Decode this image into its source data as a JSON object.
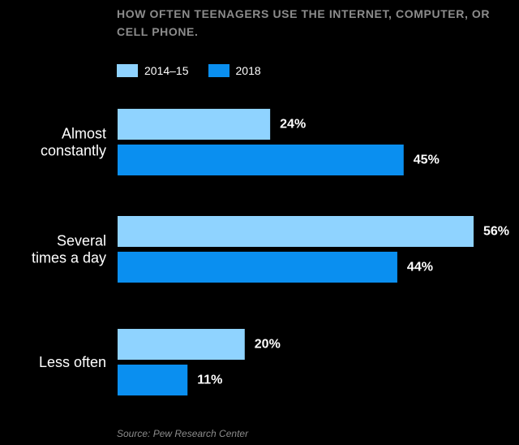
{
  "title": "HOW OFTEN TEENAGERS USE THE INTERNET, COMPUTER, OR CELL PHONE.",
  "source": "Source: Pew Research Center",
  "colors": {
    "background": "#000000",
    "series_2014_15": "#8fd3ff",
    "series_2018": "#0a8ff0"
  },
  "chart_data": {
    "type": "bar",
    "orientation": "horizontal",
    "categories": [
      [
        "Almost",
        "constantly"
      ],
      [
        "Several",
        "times a day"
      ],
      [
        "Less often"
      ]
    ],
    "series": [
      {
        "name": "2014–15",
        "values": [
          24,
          56,
          20
        ],
        "color": "#8fd3ff"
      },
      {
        "name": "2018",
        "values": [
          45,
          44,
          11
        ],
        "color": "#0a8ff0"
      }
    ],
    "value_suffix": "%",
    "xlim": [
      0,
      56
    ],
    "grid": false,
    "legend": "top-left",
    "title": "HOW OFTEN TEENAGERS USE THE INTERNET, COMPUTER, OR CELL PHONE.",
    "xlabel": "",
    "ylabel": ""
  }
}
